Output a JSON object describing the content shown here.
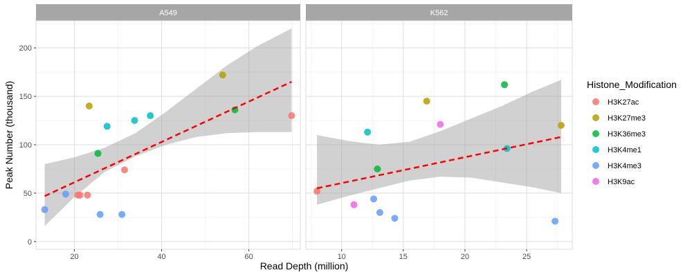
{
  "chart_data": {
    "type": "scatter",
    "xlabel": "Read Depth (million)",
    "ylabel": "Peak Number (thousand)",
    "ylim": [
      -8,
      228
    ],
    "yticks": [
      0,
      50,
      100,
      150,
      200
    ],
    "legend": {
      "title": "Histone_Modification",
      "position": "right",
      "items": [
        {
          "name": "H3K27ac",
          "color": "#F8766D"
        },
        {
          "name": "H3K27me3",
          "color": "#B79F00"
        },
        {
          "name": "H3K36me3",
          "color": "#00BA38"
        },
        {
          "name": "H3K4me1",
          "color": "#00BFC4"
        },
        {
          "name": "H3K4me3",
          "color": "#619CFF"
        },
        {
          "name": "H3K9ac",
          "color": "#F564E3"
        }
      ]
    },
    "trend_color": "#FF0000",
    "band_color": "#999999",
    "panels": [
      {
        "title": "A549",
        "xlim": [
          11.2,
          71.8
        ],
        "xticks": [
          20,
          40,
          60
        ],
        "points": [
          {
            "x": 13.2,
            "y": 33,
            "group": "H3K4me3"
          },
          {
            "x": 18.0,
            "y": 49,
            "group": "H3K4me3"
          },
          {
            "x": 20.8,
            "y": 48,
            "group": "H3K27ac"
          },
          {
            "x": 21.3,
            "y": 48,
            "group": "H3K27ac"
          },
          {
            "x": 23.0,
            "y": 48,
            "group": "H3K27ac"
          },
          {
            "x": 23.4,
            "y": 140,
            "group": "H3K27me3"
          },
          {
            "x": 25.4,
            "y": 91,
            "group": "H3K36me3"
          },
          {
            "x": 25.9,
            "y": 28,
            "group": "H3K4me3"
          },
          {
            "x": 27.5,
            "y": 119,
            "group": "H3K4me1"
          },
          {
            "x": 30.9,
            "y": 28,
            "group": "H3K4me3"
          },
          {
            "x": 31.5,
            "y": 74,
            "group": "H3K27ac"
          },
          {
            "x": 33.8,
            "y": 125,
            "group": "H3K4me1"
          },
          {
            "x": 37.4,
            "y": 130,
            "group": "H3K4me1"
          },
          {
            "x": 54.0,
            "y": 172,
            "group": "H3K27me3"
          },
          {
            "x": 56.8,
            "y": 136,
            "group": "H3K36me3"
          },
          {
            "x": 69.8,
            "y": 130,
            "group": "H3K27ac"
          }
        ],
        "fit": {
          "x0": 13.2,
          "y0": 47,
          "x1": 69.8,
          "y1": 165
        },
        "band": [
          {
            "x": 13.2,
            "lo": 16,
            "hi": 80
          },
          {
            "x": 20,
            "lo": 46,
            "hi": 87
          },
          {
            "x": 27,
            "lo": 72,
            "hi": 97
          },
          {
            "x": 34,
            "lo": 88,
            "hi": 112
          },
          {
            "x": 41,
            "lo": 100,
            "hi": 134
          },
          {
            "x": 48,
            "lo": 108,
            "hi": 158
          },
          {
            "x": 55,
            "lo": 112,
            "hi": 182
          },
          {
            "x": 62,
            "lo": 113,
            "hi": 202
          },
          {
            "x": 69.8,
            "lo": 113,
            "hi": 220
          }
        ]
      },
      {
        "title": "K562",
        "xlim": [
          7.1,
          28.7
        ],
        "xticks": [
          10,
          15,
          20,
          25
        ],
        "points": [
          {
            "x": 8.0,
            "y": 52,
            "group": "H3K27ac"
          },
          {
            "x": 11.0,
            "y": 38,
            "group": "H3K9ac"
          },
          {
            "x": 12.1,
            "y": 113,
            "group": "H3K4me1"
          },
          {
            "x": 12.6,
            "y": 44,
            "group": "H3K4me3"
          },
          {
            "x": 12.9,
            "y": 75,
            "group": "H3K36me3"
          },
          {
            "x": 13.1,
            "y": 30,
            "group": "H3K4me3"
          },
          {
            "x": 14.3,
            "y": 24,
            "group": "H3K4me3"
          },
          {
            "x": 16.9,
            "y": 145,
            "group": "H3K27me3"
          },
          {
            "x": 18.0,
            "y": 121,
            "group": "H3K9ac"
          },
          {
            "x": 23.2,
            "y": 162,
            "group": "H3K36me3"
          },
          {
            "x": 23.4,
            "y": 96,
            "group": "H3K4me1"
          },
          {
            "x": 27.3,
            "y": 21,
            "group": "H3K4me3"
          },
          {
            "x": 27.8,
            "y": 120,
            "group": "H3K27me3"
          }
        ],
        "fit": {
          "x0": 8.0,
          "y0": 55,
          "x1": 27.8,
          "y1": 108
        },
        "band": [
          {
            "x": 8.0,
            "lo": 38,
            "hi": 110
          },
          {
            "x": 10.5,
            "lo": 47,
            "hi": 104
          },
          {
            "x": 13,
            "lo": 55,
            "hi": 100
          },
          {
            "x": 15.5,
            "lo": 63,
            "hi": 103
          },
          {
            "x": 18,
            "lo": 67,
            "hi": 114
          },
          {
            "x": 20.5,
            "lo": 66,
            "hi": 127
          },
          {
            "x": 23,
            "lo": 61,
            "hi": 140
          },
          {
            "x": 25.5,
            "lo": 56,
            "hi": 155
          },
          {
            "x": 27.8,
            "lo": 50,
            "hi": 167
          }
        ]
      }
    ]
  }
}
